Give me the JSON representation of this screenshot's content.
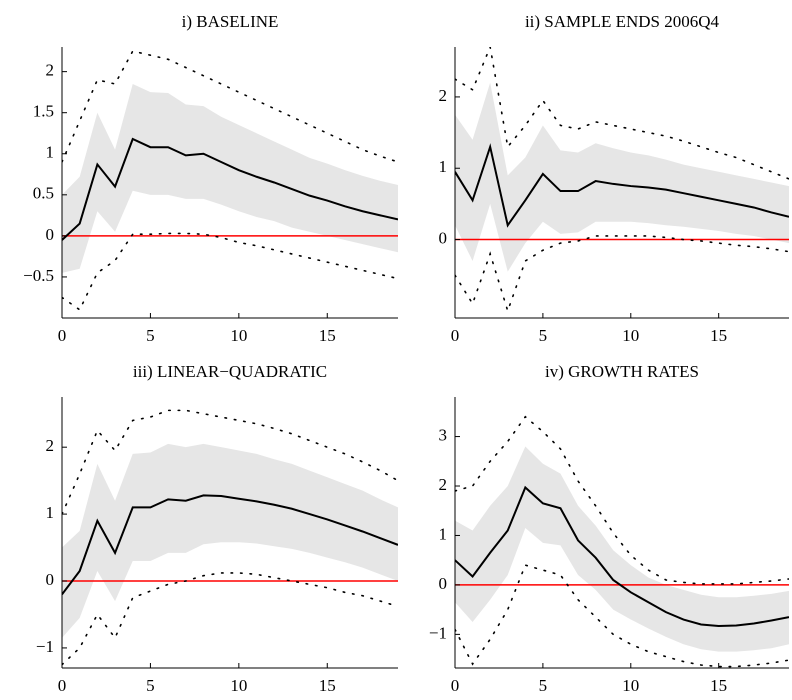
{
  "chart_data": [
    {
      "type": "line",
      "title": "i) BASELINE",
      "x": [
        0,
        1,
        2,
        3,
        4,
        5,
        6,
        7,
        8,
        9,
        10,
        11,
        12,
        13,
        14,
        15,
        16,
        17,
        18,
        19
      ],
      "xlim": [
        0,
        19
      ],
      "ylim": [
        -1,
        2.3
      ],
      "xticks": [
        0,
        5,
        10,
        15
      ],
      "yticks": [
        {
          "value": -0.5,
          "label": "−0.5"
        },
        0,
        0.5,
        1,
        1.5,
        2
      ],
      "band": {
        "color": "#e6e6e6",
        "upper": [
          0.5,
          0.72,
          1.5,
          1.05,
          1.85,
          1.75,
          1.74,
          1.6,
          1.58,
          1.45,
          1.35,
          1.25,
          1.15,
          1.05,
          0.95,
          0.88,
          0.8,
          0.73,
          0.67,
          0.62
        ],
        "lower": [
          -0.45,
          -0.4,
          0.3,
          0.05,
          0.55,
          0.5,
          0.5,
          0.45,
          0.45,
          0.38,
          0.3,
          0.23,
          0.18,
          0.1,
          0.05,
          0.0,
          -0.05,
          -0.1,
          -0.15,
          -0.2
        ]
      },
      "hline": {
        "value": 0,
        "color": "#ff0000"
      },
      "series": [
        {
          "color": "#000000",
          "dash": "dotted",
          "values": [
            0.9,
            1.4,
            1.9,
            1.85,
            2.25,
            2.2,
            2.15,
            2.05,
            1.95,
            1.85,
            1.75,
            1.65,
            1.55,
            1.45,
            1.35,
            1.25,
            1.15,
            1.05,
            0.97,
            0.9
          ]
        },
        {
          "color": "#000000",
          "dash": "dotted",
          "values": [
            -0.75,
            -0.9,
            -0.45,
            -0.3,
            0.02,
            0.02,
            0.03,
            0.03,
            0.02,
            -0.02,
            -0.08,
            -0.12,
            -0.17,
            -0.22,
            -0.27,
            -0.32,
            -0.37,
            -0.42,
            -0.47,
            -0.52
          ]
        },
        {
          "color": "#000000",
          "dash": "solid",
          "values": [
            -0.05,
            0.15,
            0.87,
            0.6,
            1.18,
            1.08,
            1.08,
            0.98,
            1.0,
            0.9,
            0.8,
            0.72,
            0.65,
            0.57,
            0.49,
            0.43,
            0.36,
            0.3,
            0.25,
            0.2
          ]
        }
      ]
    },
    {
      "type": "line",
      "title": "ii) SAMPLE ENDS 2006Q4",
      "x": [
        0,
        1,
        2,
        3,
        4,
        5,
        6,
        7,
        8,
        9,
        10,
        11,
        12,
        13,
        14,
        15,
        16,
        17,
        18,
        19
      ],
      "xlim": [
        0,
        19
      ],
      "ylim": [
        -1.1,
        2.7
      ],
      "xticks": [
        0,
        5,
        10,
        15
      ],
      "yticks": [
        0,
        1,
        2
      ],
      "band": {
        "color": "#e6e6e6",
        "upper": [
          1.75,
          1.4,
          2.2,
          0.9,
          1.15,
          1.6,
          1.25,
          1.22,
          1.35,
          1.28,
          1.22,
          1.18,
          1.12,
          1.05,
          1.0,
          0.95,
          0.9,
          0.85,
          0.8,
          0.75
        ],
        "lower": [
          0.2,
          -0.3,
          0.5,
          -0.45,
          -0.05,
          0.25,
          0.08,
          0.1,
          0.25,
          0.25,
          0.25,
          0.23,
          0.2,
          0.18,
          0.15,
          0.12,
          0.08,
          0.05,
          0.0,
          -0.05
        ]
      },
      "hline": {
        "value": 0,
        "color": "#ff0000"
      },
      "series": [
        {
          "color": "#000000",
          "dash": "dotted",
          "values": [
            2.25,
            2.1,
            2.7,
            1.3,
            1.6,
            1.95,
            1.6,
            1.55,
            1.65,
            1.6,
            1.55,
            1.5,
            1.45,
            1.38,
            1.3,
            1.22,
            1.15,
            1.05,
            0.95,
            0.85
          ]
        },
        {
          "color": "#000000",
          "dash": "dotted",
          "values": [
            -0.5,
            -0.9,
            -0.2,
            -1.0,
            -0.3,
            -0.15,
            -0.05,
            -0.02,
            0.05,
            0.05,
            0.05,
            0.05,
            0.03,
            0.0,
            -0.02,
            -0.05,
            -0.08,
            -0.1,
            -0.13,
            -0.17
          ]
        },
        {
          "color": "#000000",
          "dash": "solid",
          "values": [
            0.95,
            0.55,
            1.3,
            0.2,
            0.55,
            0.92,
            0.68,
            0.68,
            0.82,
            0.78,
            0.75,
            0.73,
            0.7,
            0.65,
            0.6,
            0.55,
            0.5,
            0.45,
            0.38,
            0.32
          ]
        }
      ]
    },
    {
      "type": "line",
      "title": "iii) LINEAR−QUADRATIC",
      "x": [
        0,
        1,
        2,
        3,
        4,
        5,
        6,
        7,
        8,
        9,
        10,
        11,
        12,
        13,
        14,
        15,
        16,
        17,
        18,
        19
      ],
      "xlim": [
        0,
        19
      ],
      "ylim": [
        -1.3,
        2.75
      ],
      "xticks": [
        0,
        5,
        10,
        15
      ],
      "yticks": [
        {
          "value": -1,
          "label": "−1"
        },
        0,
        1,
        2
      ],
      "band": {
        "color": "#e6e6e6",
        "upper": [
          0.5,
          0.75,
          1.75,
          1.2,
          1.9,
          1.92,
          2.05,
          2.0,
          2.05,
          2.0,
          1.95,
          1.9,
          1.82,
          1.75,
          1.65,
          1.55,
          1.45,
          1.35,
          1.22,
          1.1
        ],
        "lower": [
          -0.85,
          -0.55,
          0.15,
          -0.3,
          0.3,
          0.3,
          0.42,
          0.42,
          0.55,
          0.58,
          0.58,
          0.56,
          0.52,
          0.48,
          0.42,
          0.35,
          0.28,
          0.2,
          0.1,
          0.0
        ]
      },
      "hline": {
        "value": 0,
        "color": "#ff0000"
      },
      "series": [
        {
          "color": "#000000",
          "dash": "dotted",
          "values": [
            1.0,
            1.6,
            2.25,
            1.95,
            2.4,
            2.45,
            2.55,
            2.55,
            2.5,
            2.45,
            2.4,
            2.35,
            2.28,
            2.2,
            2.1,
            2.0,
            1.9,
            1.78,
            1.65,
            1.5
          ]
        },
        {
          "color": "#000000",
          "dash": "dotted",
          "values": [
            -1.25,
            -1.0,
            -0.5,
            -0.85,
            -0.25,
            -0.15,
            -0.05,
            0.0,
            0.08,
            0.12,
            0.12,
            0.1,
            0.05,
            0.0,
            -0.05,
            -0.1,
            -0.17,
            -0.22,
            -0.3,
            -0.38
          ]
        },
        {
          "color": "#000000",
          "dash": "solid",
          "values": [
            -0.2,
            0.15,
            0.9,
            0.42,
            1.1,
            1.1,
            1.22,
            1.2,
            1.28,
            1.27,
            1.23,
            1.19,
            1.14,
            1.08,
            1.0,
            0.92,
            0.83,
            0.74,
            0.64,
            0.54
          ]
        }
      ]
    },
    {
      "type": "line",
      "title": "iv) GROWTH RATES",
      "x": [
        0,
        1,
        2,
        3,
        4,
        5,
        6,
        7,
        8,
        9,
        10,
        11,
        12,
        13,
        14,
        15,
        16,
        17,
        18,
        19
      ],
      "xlim": [
        0,
        19
      ],
      "ylim": [
        -1.68,
        3.8
      ],
      "xticks": [
        0,
        5,
        10,
        15
      ],
      "yticks": [
        {
          "value": -1,
          "label": "−1"
        },
        0,
        1,
        2,
        3
      ],
      "band": {
        "color": "#e6e6e6",
        "upper": [
          1.3,
          1.1,
          1.6,
          2.0,
          2.8,
          2.45,
          2.25,
          1.6,
          1.2,
          0.7,
          0.4,
          0.15,
          0.0,
          -0.1,
          -0.2,
          -0.25,
          -0.25,
          -0.22,
          -0.18,
          -0.12
        ],
        "lower": [
          -0.35,
          -0.75,
          -0.3,
          0.2,
          1.15,
          0.85,
          0.8,
          0.2,
          -0.1,
          -0.5,
          -0.7,
          -0.88,
          -1.05,
          -1.2,
          -1.3,
          -1.35,
          -1.35,
          -1.32,
          -1.28,
          -1.2
        ]
      },
      "hline": {
        "value": 0,
        "color": "#ff0000"
      },
      "series": [
        {
          "color": "#000000",
          "dash": "dotted",
          "values": [
            1.9,
            2.0,
            2.5,
            2.9,
            3.4,
            3.1,
            2.75,
            2.1,
            1.6,
            1.05,
            0.6,
            0.3,
            0.1,
            0.05,
            0.02,
            0.02,
            0.02,
            0.05,
            0.08,
            0.12
          ]
        },
        {
          "color": "#000000",
          "dash": "dotted",
          "values": [
            -0.9,
            -1.6,
            -1.1,
            -0.5,
            0.4,
            0.3,
            0.2,
            -0.3,
            -0.65,
            -1.0,
            -1.2,
            -1.35,
            -1.45,
            -1.55,
            -1.62,
            -1.65,
            -1.65,
            -1.62,
            -1.58,
            -1.52
          ]
        },
        {
          "color": "#000000",
          "dash": "solid",
          "values": [
            0.5,
            0.17,
            0.65,
            1.1,
            1.97,
            1.65,
            1.55,
            0.9,
            0.55,
            0.1,
            -0.15,
            -0.35,
            -0.55,
            -0.7,
            -0.8,
            -0.83,
            -0.82,
            -0.78,
            -0.72,
            -0.65
          ]
        }
      ]
    }
  ]
}
